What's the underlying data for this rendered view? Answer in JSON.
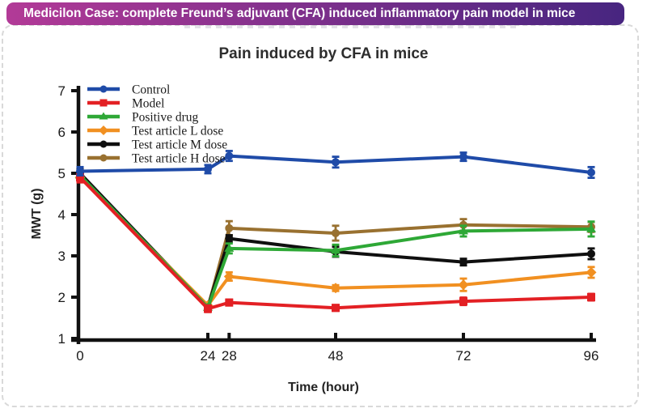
{
  "banner": {
    "text": "Medicilon Case: complete Freund’s adjuvant (CFA) induced inflammatory pain model in mice",
    "gradient_left": "#b23a97",
    "gradient_right": "#472580"
  },
  "chart_data": {
    "type": "line",
    "title": "Pain induced by CFA in mice",
    "xlabel": "Time (hour)",
    "ylabel": "MWT (g)",
    "x": [
      0,
      24,
      28,
      48,
      72,
      96
    ],
    "x_ticks": [
      0,
      24,
      28,
      48,
      72,
      96
    ],
    "y_ticks": [
      1,
      2,
      3,
      4,
      5,
      6,
      7
    ],
    "xlim": [
      0,
      96
    ],
    "ylim": [
      1,
      7
    ],
    "grid": false,
    "legend_position": "upper-left",
    "axis_color": "#111111",
    "series": [
      {
        "name": "Control",
        "color": "#1f4ba8",
        "marker": "circle",
        "values": [
          5.05,
          5.1,
          5.42,
          5.27,
          5.4,
          5.02
        ],
        "errors": [
          0.1,
          0.1,
          0.12,
          0.13,
          0.1,
          0.13
        ]
      },
      {
        "name": "Model",
        "color": "#e32024",
        "marker": "square",
        "values": [
          4.9,
          1.72,
          1.87,
          1.74,
          1.9,
          2.0
        ],
        "errors": [
          0.12,
          0.08,
          0.07,
          0.07,
          0.09,
          0.08
        ]
      },
      {
        "name": "Positive drug",
        "color": "#2ea836",
        "marker": "triangle",
        "values": [
          4.95,
          1.75,
          3.18,
          3.13,
          3.6,
          3.65
        ],
        "errors": [
          0.1,
          0.07,
          0.12,
          0.14,
          0.13,
          0.18
        ]
      },
      {
        "name": "Test article L dose",
        "color": "#f19021",
        "marker": "diamond",
        "values": [
          4.9,
          1.8,
          2.5,
          2.22,
          2.3,
          2.6
        ],
        "errors": [
          0.1,
          0.07,
          0.1,
          0.07,
          0.15,
          0.13
        ]
      },
      {
        "name": "Test article M dose",
        "color": "#0f0f0f",
        "marker": "circle",
        "values": [
          5.0,
          1.76,
          3.42,
          3.1,
          2.85,
          3.05
        ],
        "errors": [
          0.1,
          0.07,
          0.08,
          0.12,
          0.08,
          0.13
        ]
      },
      {
        "name": "Test article H dose",
        "color": "#997130",
        "marker": "circle",
        "values": [
          4.95,
          1.74,
          3.67,
          3.55,
          3.75,
          3.7
        ],
        "errors": [
          0.1,
          0.07,
          0.17,
          0.18,
          0.14,
          0.12
        ]
      }
    ]
  }
}
